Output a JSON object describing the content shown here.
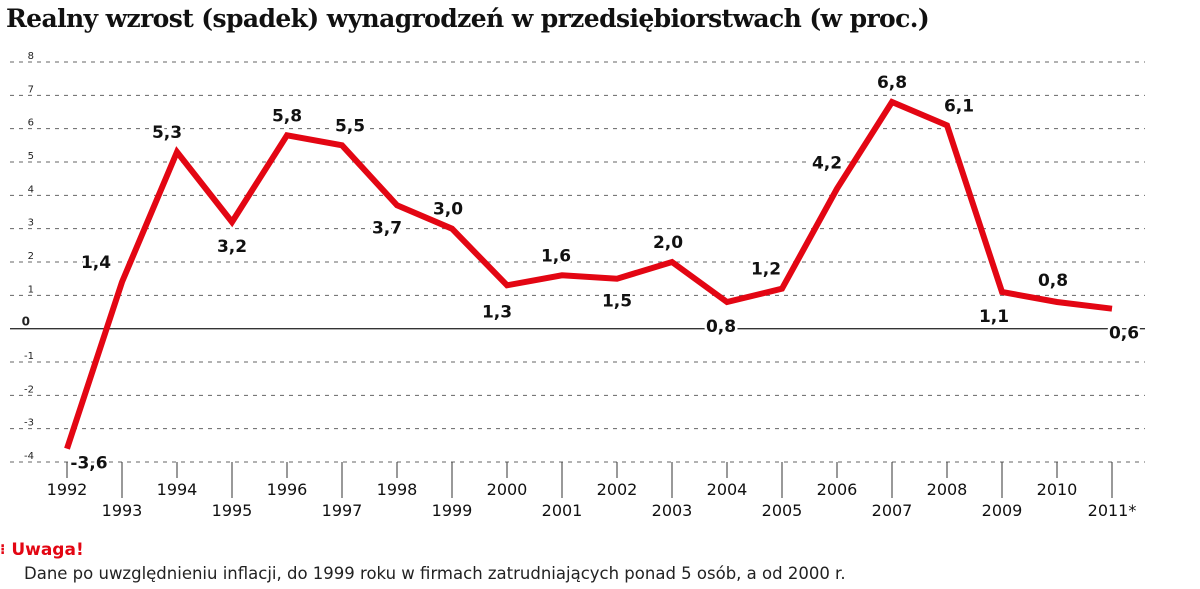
{
  "title": "Realny wzrost (spadek) wynagrodzeń w przedsiębiorstwach (w proc.)",
  "note": {
    "heading": "Uwaga!",
    "text": "Dane po uwzględnieniu inflacji, do 1999 roku w firmach zatrudniających ponad 5 osób, a od 2000 r."
  },
  "colors": {
    "line": "#e30613",
    "text": "#111111",
    "grid": "#555555",
    "accent": "#e30613"
  },
  "chart_data": {
    "type": "line",
    "title": "Realny wzrost (spadek) wynagrodzeń w przedsiębiorstwach (w proc.)",
    "xlabel": "",
    "ylabel": "",
    "ylim": [
      -4,
      8
    ],
    "yticks": [
      "-4",
      "-3",
      "-2",
      "-1",
      "0",
      "1",
      "2",
      "3",
      "4",
      "5",
      "6",
      "7",
      "8"
    ],
    "grid": "dashed horizontal",
    "categories": [
      "1992",
      "1993",
      "1994",
      "1995",
      "1996",
      "1997",
      "1998",
      "1999",
      "2000",
      "2001",
      "2002",
      "2003",
      "2004",
      "2005",
      "2006",
      "2007",
      "2008",
      "2009",
      "2010",
      "2011*"
    ],
    "values": [
      -3.6,
      1.4,
      5.3,
      3.2,
      5.8,
      5.5,
      3.7,
      3.0,
      1.3,
      1.6,
      1.5,
      2.0,
      0.8,
      1.2,
      4.2,
      6.8,
      6.1,
      1.1,
      0.8,
      0.6
    ],
    "labels": [
      "-3,6",
      "1,4",
      "5,3",
      "3,2",
      "5,8",
      "5,5",
      "3,7",
      "3,0",
      "1,3",
      "1,6",
      "1,5",
      "2,0",
      "0,8",
      "1,2",
      "4,2",
      "6,8",
      "6,1",
      "1,1",
      "0,8",
      "0,6"
    ]
  }
}
